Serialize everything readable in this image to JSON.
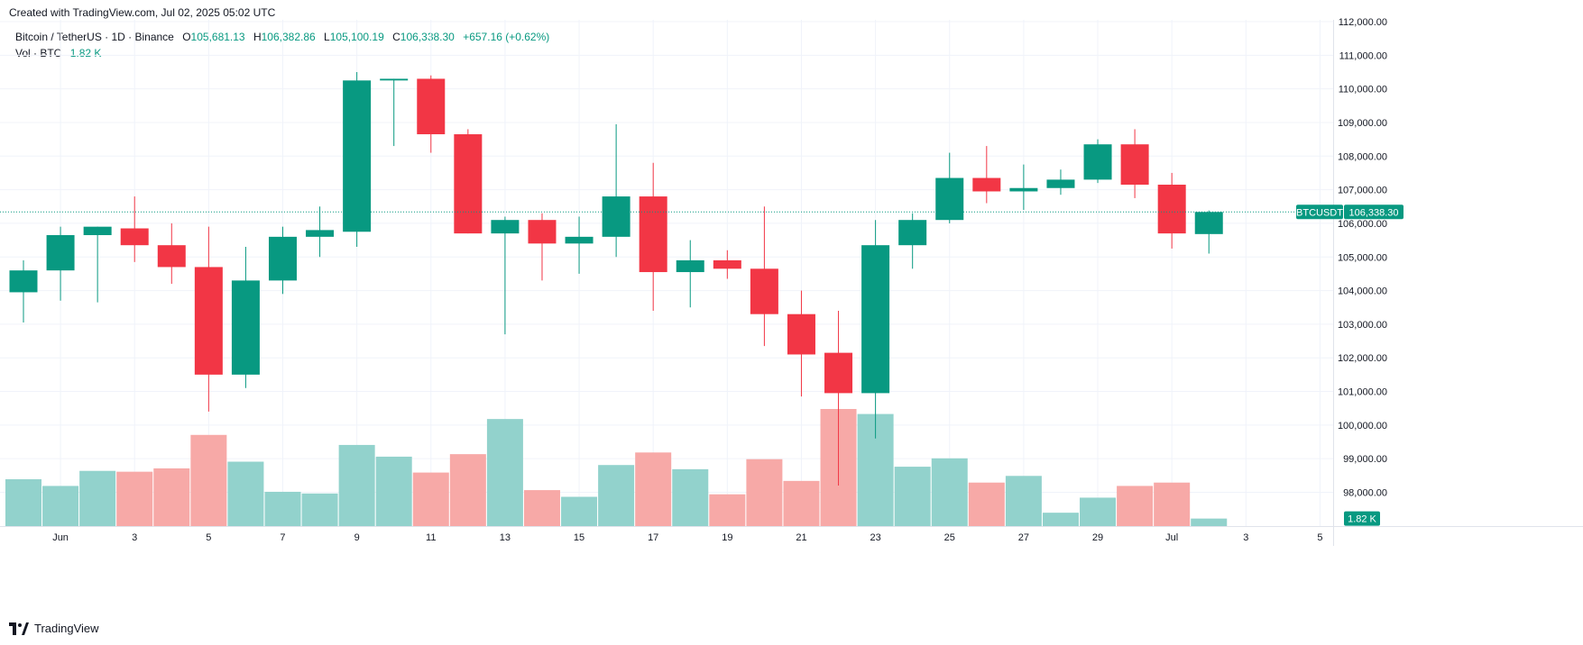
{
  "header": {
    "created_text": "Created with TradingView.com, Jul 02, 2025 05:02 UTC"
  },
  "legend": {
    "symbol_title": "Bitcoin / TetherUS · 1D · Binance",
    "o_label": "O",
    "o_value": "105,681.13",
    "h_label": "H",
    "h_value": "106,382.86",
    "l_label": "L",
    "l_value": "105,100.19",
    "c_label": "C",
    "c_value": "106,338.30",
    "change": "+657.16 (+0.62%)",
    "volume_label": "Vol · BTC",
    "volume_value": "1.82 K"
  },
  "badges": {
    "symbol": "BTCUSDT",
    "price": "106,338.30",
    "volume": "1.82 K"
  },
  "footer": {
    "brand": "TradingView"
  },
  "colors": {
    "up": "#089981",
    "down": "#f23645",
    "vol_up": "#92d2cc",
    "vol_down": "#f7a9a7",
    "grid": "#f0f3fa",
    "text": "#131722"
  },
  "chart_data": {
    "type": "candlestick",
    "symbol": "BTCUSDT",
    "y_axis": {
      "range": [
        97300,
        112000
      ],
      "ticks": [
        98000,
        99000,
        100000,
        101000,
        102000,
        103000,
        104000,
        105000,
        106000,
        107000,
        108000,
        109000,
        110000,
        111000,
        112000
      ],
      "tick_labels": [
        "98,000.00",
        "99,000.00",
        "100,000.00",
        "101,000.00",
        "102,000.00",
        "103,000.00",
        "104,000.00",
        "105,000.00",
        "106,000.00",
        "107,000.00",
        "108,000.00",
        "109,000.00",
        "110,000.00",
        "111,000.00",
        "112,000.00"
      ]
    },
    "x_axis": {
      "tick_labels": [
        {
          "day": 1,
          "label": "Jun"
        },
        {
          "day": 3,
          "label": "3"
        },
        {
          "day": 5,
          "label": "5"
        },
        {
          "day": 7,
          "label": "7"
        },
        {
          "day": 9,
          "label": "9"
        },
        {
          "day": 11,
          "label": "11"
        },
        {
          "day": 13,
          "label": "13"
        },
        {
          "day": 15,
          "label": "15"
        },
        {
          "day": 17,
          "label": "17"
        },
        {
          "day": 19,
          "label": "19"
        },
        {
          "day": 21,
          "label": "21"
        },
        {
          "day": 23,
          "label": "23"
        },
        {
          "day": 25,
          "label": "25"
        },
        {
          "day": 27,
          "label": "27"
        },
        {
          "day": 29,
          "label": "29"
        },
        {
          "day": 31,
          "label": "Jul"
        },
        {
          "day": 33,
          "label": "3"
        },
        {
          "day": 35,
          "label": "5"
        }
      ]
    },
    "candles": [
      {
        "date": "2025-05-31",
        "o": 103950,
        "h": 104900,
        "l": 103050,
        "c": 104600
      },
      {
        "date": "2025-06-01",
        "o": 104600,
        "h": 105900,
        "l": 103700,
        "c": 105650
      },
      {
        "date": "2025-06-02",
        "o": 105650,
        "h": 105900,
        "l": 103650,
        "c": 105900
      },
      {
        "date": "2025-06-03",
        "o": 105850,
        "h": 106800,
        "l": 104850,
        "c": 105350
      },
      {
        "date": "2025-06-04",
        "o": 105350,
        "h": 106000,
        "l": 104200,
        "c": 104700
      },
      {
        "date": "2025-06-05",
        "o": 104700,
        "h": 105900,
        "l": 100400,
        "c": 101500
      },
      {
        "date": "2025-06-06",
        "o": 101500,
        "h": 105300,
        "l": 101100,
        "c": 104300
      },
      {
        "date": "2025-06-07",
        "o": 104300,
        "h": 105900,
        "l": 103900,
        "c": 105600
      },
      {
        "date": "2025-06-08",
        "o": 105600,
        "h": 106500,
        "l": 105000,
        "c": 105800
      },
      {
        "date": "2025-06-09",
        "o": 105750,
        "h": 110500,
        "l": 105300,
        "c": 110250
      },
      {
        "date": "2025-06-10",
        "o": 110250,
        "h": 110300,
        "l": 108300,
        "c": 110300
      },
      {
        "date": "2025-06-11",
        "o": 110300,
        "h": 110400,
        "l": 108100,
        "c": 108650
      },
      {
        "date": "2025-06-12",
        "o": 108650,
        "h": 108800,
        "l": 105700,
        "c": 105700
      },
      {
        "date": "2025-06-13",
        "o": 105700,
        "h": 106200,
        "l": 102700,
        "c": 106100
      },
      {
        "date": "2025-06-14",
        "o": 106100,
        "h": 106300,
        "l": 104300,
        "c": 105400
      },
      {
        "date": "2025-06-15",
        "o": 105400,
        "h": 106200,
        "l": 104500,
        "c": 105600
      },
      {
        "date": "2025-06-16",
        "o": 105600,
        "h": 108950,
        "l": 105000,
        "c": 106800
      },
      {
        "date": "2025-06-17",
        "o": 106800,
        "h": 107800,
        "l": 103400,
        "c": 104550
      },
      {
        "date": "2025-06-18",
        "o": 104550,
        "h": 105500,
        "l": 103500,
        "c": 104900
      },
      {
        "date": "2025-06-19",
        "o": 104900,
        "h": 105200,
        "l": 104350,
        "c": 104650
      },
      {
        "date": "2025-06-20",
        "o": 104650,
        "h": 106500,
        "l": 102350,
        "c": 103300
      },
      {
        "date": "2025-06-21",
        "o": 103300,
        "h": 104000,
        "l": 100850,
        "c": 102100
      },
      {
        "date": "2025-06-22",
        "o": 102150,
        "h": 103400,
        "l": 98200,
        "c": 100950
      },
      {
        "date": "2025-06-23",
        "o": 100950,
        "h": 106100,
        "l": 99600,
        "c": 105350
      },
      {
        "date": "2025-06-24",
        "o": 105350,
        "h": 106300,
        "l": 104650,
        "c": 106100
      },
      {
        "date": "2025-06-25",
        "o": 106100,
        "h": 108100,
        "l": 106000,
        "c": 107350
      },
      {
        "date": "2025-06-26",
        "o": 107350,
        "h": 108300,
        "l": 106600,
        "c": 106950
      },
      {
        "date": "2025-06-27",
        "o": 106950,
        "h": 107750,
        "l": 106400,
        "c": 107050
      },
      {
        "date": "2025-06-28",
        "o": 107050,
        "h": 107600,
        "l": 106850,
        "c": 107300
      },
      {
        "date": "2025-06-29",
        "o": 107300,
        "h": 108500,
        "l": 107200,
        "c": 108350
      },
      {
        "date": "2025-06-30",
        "o": 108350,
        "h": 108800,
        "l": 106750,
        "c": 107150
      },
      {
        "date": "2025-07-01",
        "o": 107150,
        "h": 107500,
        "l": 105250,
        "c": 105700
      },
      {
        "date": "2025-07-02",
        "o": 105681.13,
        "h": 106382.86,
        "l": 105100.19,
        "c": 106338.3
      }
    ],
    "volume_relative": [
      0.56,
      0.48,
      0.66,
      0.65,
      0.69,
      1.09,
      0.77,
      0.41,
      0.39,
      0.97,
      0.83,
      0.64,
      0.86,
      1.28,
      0.43,
      0.35,
      0.73,
      0.88,
      0.68,
      0.38,
      0.8,
      0.54,
      1.4,
      1.34,
      0.71,
      0.81,
      0.52,
      0.6,
      0.16,
      0.34,
      0.48,
      0.52,
      0.09
    ],
    "last_price": 106338.3,
    "last_volume": "1.82 K"
  }
}
